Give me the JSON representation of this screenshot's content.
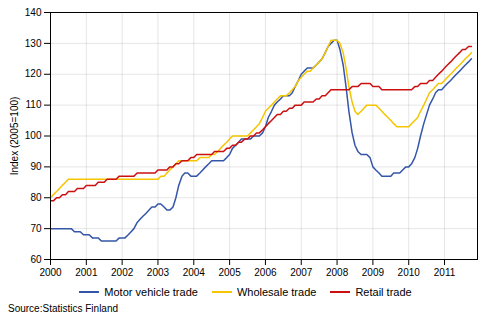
{
  "chart_data": {
    "type": "line",
    "ylabel": "Index (2005=100)",
    "source": "Source:Statistics Finland",
    "xlim": [
      2000.0,
      2011.92
    ],
    "xticks": [
      2000,
      2001,
      2002,
      2003,
      2004,
      2005,
      2006,
      2007,
      2008,
      2009,
      2010,
      2011
    ],
    "ylim": [
      60,
      140
    ],
    "yticks": [
      60,
      70,
      80,
      90,
      100,
      110,
      120,
      130,
      140
    ],
    "grid": true,
    "legend": "bottom",
    "x": [
      2000.0,
      2000.08,
      2000.17,
      2000.25,
      2000.33,
      2000.42,
      2000.5,
      2000.58,
      2000.67,
      2000.75,
      2000.83,
      2000.92,
      2001.0,
      2001.08,
      2001.17,
      2001.25,
      2001.33,
      2001.42,
      2001.5,
      2001.58,
      2001.67,
      2001.75,
      2001.83,
      2001.92,
      2002.0,
      2002.08,
      2002.17,
      2002.25,
      2002.33,
      2002.42,
      2002.5,
      2002.58,
      2002.67,
      2002.75,
      2002.83,
      2002.92,
      2003.0,
      2003.08,
      2003.17,
      2003.25,
      2003.33,
      2003.42,
      2003.5,
      2003.58,
      2003.67,
      2003.75,
      2003.83,
      2003.92,
      2004.0,
      2004.08,
      2004.17,
      2004.25,
      2004.33,
      2004.42,
      2004.5,
      2004.58,
      2004.67,
      2004.75,
      2004.83,
      2004.92,
      2005.0,
      2005.08,
      2005.17,
      2005.25,
      2005.33,
      2005.42,
      2005.5,
      2005.58,
      2005.67,
      2005.75,
      2005.83,
      2005.92,
      2006.0,
      2006.08,
      2006.17,
      2006.25,
      2006.33,
      2006.42,
      2006.5,
      2006.58,
      2006.67,
      2006.75,
      2006.83,
      2006.92,
      2007.0,
      2007.08,
      2007.17,
      2007.25,
      2007.33,
      2007.42,
      2007.5,
      2007.58,
      2007.67,
      2007.75,
      2007.83,
      2007.92,
      2008.0,
      2008.08,
      2008.17,
      2008.25,
      2008.33,
      2008.42,
      2008.5,
      2008.58,
      2008.67,
      2008.75,
      2008.83,
      2008.92,
      2009.0,
      2009.08,
      2009.17,
      2009.25,
      2009.33,
      2009.42,
      2009.5,
      2009.58,
      2009.67,
      2009.75,
      2009.83,
      2009.92,
      2010.0,
      2010.08,
      2010.17,
      2010.25,
      2010.33,
      2010.42,
      2010.5,
      2010.58,
      2010.67,
      2010.75,
      2010.83,
      2010.92,
      2011.0,
      2011.08,
      2011.17,
      2011.25,
      2011.33,
      2011.42,
      2011.5,
      2011.58,
      2011.67,
      2011.75
    ],
    "series": [
      {
        "name": "Motor vehicle trade",
        "color": "#3555A8",
        "values": [
          70,
          70,
          70,
          70,
          70,
          70,
          70,
          70,
          69,
          69,
          69,
          68,
          68,
          68,
          67,
          67,
          67,
          66,
          66,
          66,
          66,
          66,
          66,
          67,
          67,
          67,
          68,
          69,
          70,
          72,
          73,
          74,
          75,
          76,
          77,
          77,
          78,
          78,
          77,
          76,
          76,
          77,
          80,
          84,
          87,
          88,
          88,
          87,
          87,
          87,
          88,
          89,
          90,
          91,
          92,
          92,
          92,
          92,
          92,
          93,
          94,
          96,
          97,
          98,
          99,
          99,
          99,
          99,
          100,
          100,
          100,
          101,
          103,
          106,
          108,
          110,
          111,
          112,
          113,
          113,
          113,
          114,
          116,
          118,
          120,
          121,
          122,
          122,
          122,
          123,
          124,
          125,
          127,
          129,
          130,
          131,
          131,
          128,
          123,
          116,
          108,
          101,
          97,
          95,
          94,
          94,
          94,
          93,
          90,
          89,
          88,
          87,
          87,
          87,
          87,
          88,
          88,
          88,
          89,
          90,
          90,
          91,
          93,
          96,
          100,
          104,
          107,
          110,
          112,
          114,
          115,
          115,
          116,
          117,
          118,
          119,
          120,
          121,
          122,
          123,
          124,
          125
        ]
      },
      {
        "name": "Wholesale trade",
        "color": "#F5C500",
        "values": [
          80,
          81,
          82,
          83,
          84,
          85,
          86,
          86,
          86,
          86,
          86,
          86,
          86,
          86,
          86,
          86,
          86,
          86,
          86,
          86,
          86,
          86,
          86,
          86,
          86,
          86,
          86,
          86,
          86,
          86,
          86,
          86,
          86,
          86,
          86,
          86,
          86,
          87,
          87,
          88,
          89,
          90,
          91,
          92,
          92,
          92,
          92,
          92,
          92,
          92,
          93,
          93,
          93,
          93,
          94,
          94,
          95,
          96,
          97,
          98,
          99,
          100,
          100,
          100,
          100,
          100,
          100,
          101,
          102,
          103,
          104,
          106,
          108,
          109,
          110,
          111,
          112,
          113,
          113,
          113,
          114,
          115,
          116,
          118,
          119,
          120,
          121,
          121,
          122,
          123,
          124,
          125,
          127,
          129,
          131,
          131,
          131,
          130,
          127,
          122,
          116,
          111,
          108,
          107,
          108,
          109,
          110,
          110,
          110,
          110,
          109,
          108,
          107,
          106,
          105,
          104,
          103,
          103,
          103,
          103,
          103,
          104,
          105,
          106,
          108,
          110,
          112,
          114,
          115,
          116,
          117,
          117,
          118,
          119,
          120,
          121,
          122,
          123,
          124,
          125,
          126,
          127
        ]
      },
      {
        "name": "Retail trade",
        "color": "#CC1010",
        "values": [
          79,
          79,
          80,
          80,
          81,
          81,
          82,
          82,
          82,
          83,
          83,
          83,
          84,
          84,
          84,
          84,
          85,
          85,
          85,
          86,
          86,
          86,
          86,
          87,
          87,
          87,
          87,
          87,
          87,
          88,
          88,
          88,
          88,
          88,
          88,
          88,
          89,
          89,
          89,
          89,
          90,
          90,
          91,
          91,
          92,
          92,
          92,
          93,
          93,
          94,
          94,
          94,
          94,
          94,
          94,
          95,
          95,
          95,
          95,
          96,
          96,
          97,
          97,
          98,
          98,
          99,
          99,
          100,
          100,
          101,
          101,
          102,
          103,
          104,
          105,
          106,
          107,
          107,
          108,
          108,
          109,
          109,
          110,
          110,
          110,
          111,
          111,
          111,
          111,
          112,
          112,
          113,
          113,
          114,
          115,
          115,
          115,
          115,
          115,
          115,
          115,
          116,
          116,
          116,
          117,
          117,
          117,
          117,
          116,
          116,
          116,
          115,
          115,
          115,
          115,
          115,
          115,
          115,
          115,
          115,
          115,
          115,
          116,
          116,
          117,
          117,
          117,
          118,
          118,
          119,
          120,
          121,
          122,
          123,
          124,
          125,
          126,
          127,
          128,
          128,
          129,
          129
        ]
      }
    ]
  }
}
